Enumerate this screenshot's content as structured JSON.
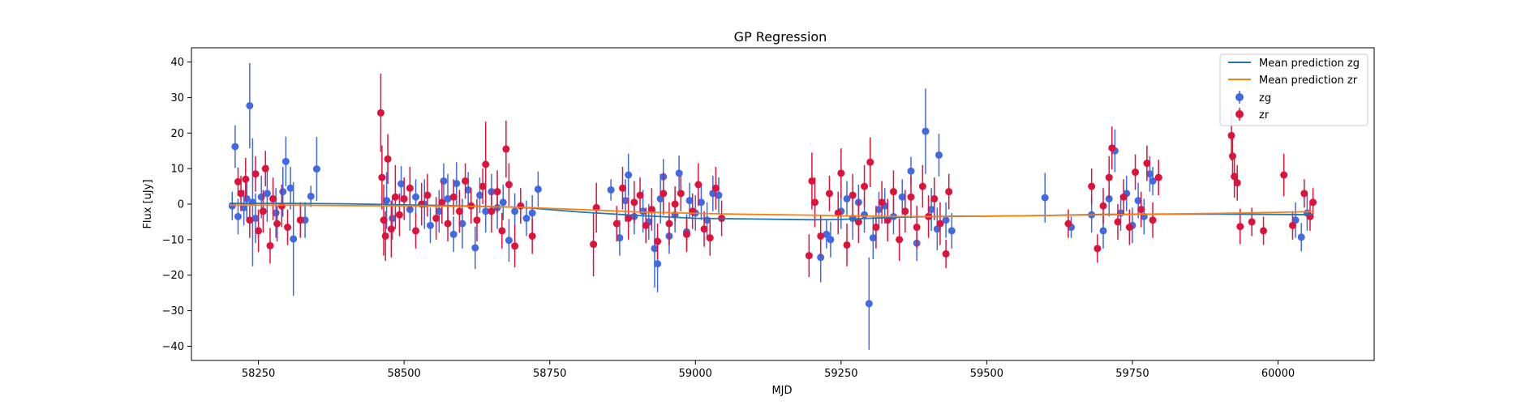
{
  "chart_data": {
    "type": "scatter",
    "title": "GP Regression",
    "xlabel": "MJD",
    "ylabel": "Flux [uJy]",
    "xlim": [
      58135,
      60165
    ],
    "ylim": [
      -44,
      44
    ],
    "xticks": [
      58250,
      58500,
      58750,
      59000,
      59250,
      59500,
      59750,
      60000
    ],
    "yticks": [
      -40,
      -30,
      -20,
      -10,
      0,
      10,
      20,
      30,
      40
    ],
    "grid": false,
    "legend_position": "top-right",
    "legend": [
      "Mean prediction zg",
      "Mean prediction zr",
      "zg",
      "zr"
    ],
    "colors": {
      "zg_line": "#1f77b4",
      "zr_line": "#ff7f0e",
      "zg_points": "#4169e1",
      "zr_points": "#dc143c"
    },
    "lines": [
      {
        "name": "Mean prediction zg",
        "color": "#1f77b4",
        "x": [
          58200,
          58300,
          58400,
          58500,
          58600,
          58700,
          58800,
          58900,
          59000,
          59100,
          59200,
          59250,
          59300,
          59350,
          59400,
          59450,
          59500,
          59600,
          59700,
          59800,
          59900,
          60000,
          60060
        ],
        "y": [
          0.2,
          0.2,
          0.1,
          -0.2,
          -0.5,
          -0.9,
          -2.2,
          -3.2,
          -4.0,
          -4.2,
          -4.4,
          -4.3,
          -4.0,
          -3.7,
          -3.5,
          -3.4,
          -3.4,
          -3.2,
          -2.9,
          -2.8,
          -2.8,
          -2.9,
          -3.0
        ]
      },
      {
        "name": "Mean prediction zr",
        "color": "#ff7f0e",
        "x": [
          58200,
          58300,
          58400,
          58500,
          58600,
          58700,
          58800,
          58900,
          59000,
          59100,
          59200,
          59250,
          59300,
          59350,
          59400,
          59450,
          59500,
          59600,
          59700,
          59800,
          59900,
          60000,
          60060
        ],
        "y": [
          -0.3,
          -0.3,
          -0.4,
          -0.5,
          -0.6,
          -0.9,
          -1.5,
          -2.2,
          -2.6,
          -2.9,
          -3.1,
          -3.3,
          -3.4,
          -3.5,
          -3.5,
          -3.5,
          -3.4,
          -3.2,
          -3.0,
          -2.8,
          -2.6,
          -2.3,
          -2.1
        ]
      }
    ],
    "series": [
      {
        "name": "zg",
        "color": "#4169e1",
        "points": [
          [
            58205,
            -0.5,
            4
          ],
          [
            58210,
            16.2,
            6
          ],
          [
            58215,
            -3.5,
            5
          ],
          [
            58225,
            -1.0,
            5
          ],
          [
            58230,
            1.5,
            6
          ],
          [
            58235,
            27.7,
            12
          ],
          [
            58240,
            0.5,
            18
          ],
          [
            58245,
            -4.0,
            7
          ],
          [
            58255,
            2.0,
            6
          ],
          [
            58265,
            3.0,
            8
          ],
          [
            58280,
            -2.5,
            7
          ],
          [
            58292,
            3.5,
            7
          ],
          [
            58297,
            12.0,
            7
          ],
          [
            58305,
            4.5,
            6
          ],
          [
            58310,
            -9.8,
            16
          ],
          [
            58330,
            -4.5,
            5
          ],
          [
            58340,
            2.2,
            3
          ],
          [
            58350,
            9.9,
            9
          ],
          [
            58470,
            1.0,
            8
          ],
          [
            58480,
            -4.0,
            6
          ],
          [
            58495,
            5.7,
            5
          ],
          [
            58510,
            -1.5,
            6
          ],
          [
            58520,
            2.0,
            5
          ],
          [
            58535,
            0.0,
            7
          ],
          [
            58545,
            -6.0,
            5
          ],
          [
            58560,
            -2.0,
            6
          ],
          [
            58568,
            6.5,
            5
          ],
          [
            58575,
            1.5,
            7
          ],
          [
            58585,
            -8.5,
            5
          ],
          [
            58590,
            5.8,
            6
          ],
          [
            58600,
            -5.5,
            7
          ],
          [
            58610,
            4.0,
            5
          ],
          [
            58622,
            -12.3,
            6
          ],
          [
            58630,
            2.5,
            5
          ],
          [
            58640,
            -2.0,
            6
          ],
          [
            58650,
            3.5,
            5
          ],
          [
            58660,
            -1.0,
            6
          ],
          [
            58670,
            0.5,
            5
          ],
          [
            58680,
            -10.2,
            6
          ],
          [
            58690,
            -2.0,
            5
          ],
          [
            58710,
            -4.0,
            5
          ],
          [
            58720,
            -2.5,
            5
          ],
          [
            58730,
            4.2,
            5
          ],
          [
            58855,
            4.0,
            3
          ],
          [
            58870,
            -9.5,
            5
          ],
          [
            58880,
            1.0,
            6
          ],
          [
            58885,
            8.2,
            6
          ],
          [
            58895,
            -3.5,
            5
          ],
          [
            58910,
            -2.0,
            6
          ],
          [
            58920,
            -5.0,
            5
          ],
          [
            58930,
            -12.5,
            11
          ],
          [
            58935,
            -16.8,
            8
          ],
          [
            58940,
            1.5,
            7
          ],
          [
            58945,
            7.7,
            5
          ],
          [
            58955,
            -9.0,
            5
          ],
          [
            58965,
            -3.0,
            5
          ],
          [
            58972,
            8.7,
            5
          ],
          [
            58985,
            -7.8,
            5
          ],
          [
            58990,
            1.0,
            5
          ],
          [
            59000,
            -2.5,
            5
          ],
          [
            59010,
            0.5,
            5
          ],
          [
            59020,
            -4.5,
            5
          ],
          [
            59030,
            3.0,
            5
          ],
          [
            59040,
            2.5,
            5
          ],
          [
            59215,
            -15.0,
            7
          ],
          [
            59225,
            -8.5,
            4
          ],
          [
            59232,
            -10.0,
            5
          ],
          [
            59250,
            -2.0,
            5
          ],
          [
            59260,
            1.5,
            5
          ],
          [
            59270,
            -4.0,
            6
          ],
          [
            59280,
            0.5,
            5
          ],
          [
            59290,
            -3.0,
            5
          ],
          [
            59298,
            -28.0,
            13
          ],
          [
            59305,
            -9.5,
            6
          ],
          [
            59315,
            -1.5,
            5
          ],
          [
            59325,
            -0.5,
            5
          ],
          [
            59340,
            -3.5,
            5
          ],
          [
            59355,
            2.0,
            5
          ],
          [
            59370,
            9.3,
            4
          ],
          [
            59380,
            -11.0,
            5
          ],
          [
            59395,
            20.5,
            12
          ],
          [
            59405,
            -1.5,
            6
          ],
          [
            59415,
            -7.0,
            6
          ],
          [
            59418,
            13.8,
            6
          ],
          [
            59430,
            -4.5,
            5
          ],
          [
            59440,
            -7.5,
            5
          ],
          [
            59600,
            1.8,
            7
          ],
          [
            59645,
            -6.5,
            3
          ],
          [
            59680,
            -3.0,
            5
          ],
          [
            59700,
            -7.5,
            5
          ],
          [
            59710,
            1.5,
            5
          ],
          [
            59720,
            15.0,
            6
          ],
          [
            59730,
            -2.5,
            5
          ],
          [
            59740,
            3.0,
            5
          ],
          [
            59750,
            -6.0,
            5
          ],
          [
            59760,
            1.0,
            5
          ],
          [
            59770,
            -3.5,
            5
          ],
          [
            59780,
            8.5,
            5
          ],
          [
            59785,
            6.5,
            4
          ],
          [
            60030,
            -4.5,
            5
          ],
          [
            60040,
            -9.3,
            4
          ],
          [
            60050,
            -2.5,
            5
          ]
        ]
      },
      {
        "name": "zr",
        "color": "#dc143c",
        "points": [
          [
            58215,
            6.3,
            4
          ],
          [
            58220,
            3.0,
            5
          ],
          [
            58228,
            7.0,
            6
          ],
          [
            58235,
            -4.5,
            5
          ],
          [
            58245,
            8.5,
            5
          ],
          [
            58250,
            -7.5,
            6
          ],
          [
            58258,
            -2.0,
            6
          ],
          [
            58262,
            10.0,
            5
          ],
          [
            58270,
            -11.7,
            5
          ],
          [
            58275,
            1.5,
            6
          ],
          [
            58282,
            -5.5,
            5
          ],
          [
            58290,
            -0.5,
            6
          ],
          [
            58300,
            -6.5,
            5
          ],
          [
            58322,
            -4.5,
            5
          ],
          [
            58460,
            25.7,
            11
          ],
          [
            58462,
            7.5,
            9
          ],
          [
            58465,
            -4.5,
            10
          ],
          [
            58468,
            -9.0,
            7
          ],
          [
            58472,
            12.7,
            7
          ],
          [
            58478,
            -7.0,
            8
          ],
          [
            58485,
            2.0,
            9
          ],
          [
            58492,
            -3.0,
            6
          ],
          [
            58500,
            1.5,
            6
          ],
          [
            58510,
            4.5,
            6
          ],
          [
            58520,
            -7.5,
            5
          ],
          [
            58530,
            0.0,
            6
          ],
          [
            58540,
            2.5,
            6
          ],
          [
            58555,
            -4.0,
            6
          ],
          [
            58565,
            0.5,
            6
          ],
          [
            58575,
            -5.5,
            5
          ],
          [
            58585,
            2.0,
            5
          ],
          [
            58595,
            -2.0,
            6
          ],
          [
            58605,
            6.5,
            5
          ],
          [
            58615,
            -0.5,
            5
          ],
          [
            58625,
            -4.5,
            6
          ],
          [
            58635,
            5.0,
            5
          ],
          [
            58640,
            11.2,
            12
          ],
          [
            58650,
            -2.0,
            6
          ],
          [
            58660,
            3.5,
            6
          ],
          [
            58668,
            -7.5,
            5
          ],
          [
            58675,
            15.5,
            8
          ],
          [
            58680,
            5.5,
            6
          ],
          [
            58690,
            -11.8,
            6
          ],
          [
            58700,
            -0.5,
            5
          ],
          [
            58720,
            -9.0,
            5
          ],
          [
            58825,
            -11.3,
            9
          ],
          [
            58830,
            -1.0,
            7
          ],
          [
            58865,
            -5.5,
            5
          ],
          [
            58875,
            4.5,
            6
          ],
          [
            58885,
            -4.0,
            6
          ],
          [
            58895,
            0.5,
            6
          ],
          [
            58905,
            2.5,
            5
          ],
          [
            58915,
            -6.0,
            5
          ],
          [
            58925,
            -1.5,
            6
          ],
          [
            58935,
            -10.5,
            5
          ],
          [
            58945,
            3.0,
            6
          ],
          [
            58955,
            -5.5,
            6
          ],
          [
            58965,
            0.0,
            5
          ],
          [
            58975,
            3.0,
            5
          ],
          [
            58985,
            -8.5,
            5
          ],
          [
            58995,
            -2.0,
            5
          ],
          [
            59005,
            5.5,
            6
          ],
          [
            59015,
            -7.0,
            5
          ],
          [
            59025,
            -9.5,
            5
          ],
          [
            59035,
            4.5,
            6
          ],
          [
            59045,
            -4.0,
            5
          ],
          [
            59195,
            -14.5,
            6
          ],
          [
            59200,
            6.5,
            8
          ],
          [
            59205,
            0.5,
            7
          ],
          [
            59215,
            -9.0,
            6
          ],
          [
            59230,
            3.0,
            5
          ],
          [
            59245,
            -2.5,
            6
          ],
          [
            59250,
            8.7,
            7
          ],
          [
            59260,
            -11.5,
            6
          ],
          [
            59270,
            2.5,
            6
          ],
          [
            59280,
            -5.0,
            6
          ],
          [
            59290,
            5.0,
            6
          ],
          [
            59300,
            11.8,
            7
          ],
          [
            59310,
            -6.5,
            6
          ],
          [
            59320,
            0.5,
            6
          ],
          [
            59330,
            -4.5,
            6
          ],
          [
            59340,
            3.5,
            6
          ],
          [
            59350,
            -10.0,
            6
          ],
          [
            59360,
            -2.0,
            6
          ],
          [
            59370,
            2.0,
            6
          ],
          [
            59380,
            -6.5,
            6
          ],
          [
            59390,
            5.0,
            6
          ],
          [
            59400,
            -3.5,
            6
          ],
          [
            59410,
            1.5,
            6
          ],
          [
            59420,
            -5.5,
            6
          ],
          [
            59430,
            -14.0,
            4
          ],
          [
            59435,
            3.5,
            5
          ],
          [
            59640,
            -5.5,
            4
          ],
          [
            59680,
            5.0,
            5
          ],
          [
            59690,
            -12.5,
            4
          ],
          [
            59700,
            -0.5,
            5
          ],
          [
            59710,
            7.5,
            6
          ],
          [
            59715,
            15.8,
            6
          ],
          [
            59725,
            -5.0,
            5
          ],
          [
            59735,
            2.0,
            5
          ],
          [
            59745,
            -6.5,
            5
          ],
          [
            59755,
            9.0,
            5
          ],
          [
            59765,
            -1.5,
            5
          ],
          [
            59775,
            11.5,
            5
          ],
          [
            59785,
            -4.5,
            5
          ],
          [
            59795,
            7.5,
            5
          ],
          [
            59920,
            19.3,
            7
          ],
          [
            59922,
            13.5,
            6
          ],
          [
            59925,
            7.8,
            6
          ],
          [
            59930,
            6.0,
            5
          ],
          [
            59935,
            -6.3,
            5
          ],
          [
            59955,
            -5.0,
            4
          ],
          [
            59975,
            -7.5,
            4
          ],
          [
            60010,
            8.2,
            6
          ],
          [
            60025,
            -6.0,
            4
          ],
          [
            60045,
            3.0,
            4
          ],
          [
            60055,
            -3.5,
            4
          ],
          [
            60060,
            0.5,
            4
          ]
        ]
      }
    ]
  }
}
